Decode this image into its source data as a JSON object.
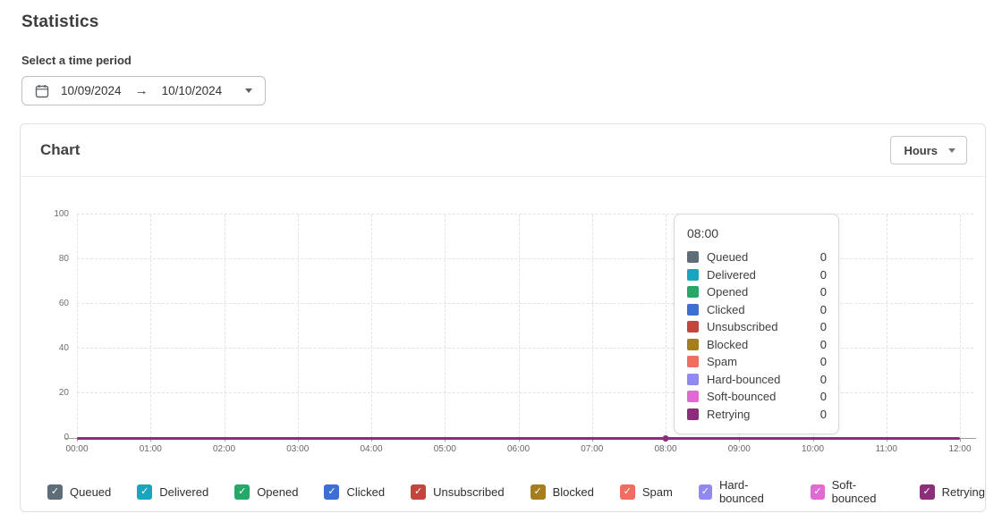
{
  "page": {
    "title": "Statistics"
  },
  "time_period": {
    "label": "Select a time period",
    "start_date": "10/09/2024",
    "end_date": "10/10/2024",
    "arrow": "→"
  },
  "chart_card": {
    "title": "Chart",
    "interval_selector": {
      "value": "Hours"
    }
  },
  "icons": {
    "check": "✓"
  },
  "tooltip": {
    "title": "08:00"
  },
  "chart_data": {
    "type": "line",
    "title": "Chart",
    "xlabel": "",
    "ylabel": "",
    "x": [
      "00:00",
      "01:00",
      "02:00",
      "03:00",
      "04:00",
      "05:00",
      "06:00",
      "07:00",
      "08:00",
      "09:00",
      "10:00",
      "11:00",
      "12:00"
    ],
    "ylim": [
      0,
      100
    ],
    "yticks": [
      0,
      20,
      40,
      60,
      80,
      100
    ],
    "grid": true,
    "legend_position": "bottom",
    "hover": {
      "x": "08:00",
      "index": 8
    },
    "axis_color": "#9e9e9e",
    "grid_color": "#e2e2e2",
    "series": [
      {
        "name": "Queued",
        "color": "#5d6d7a",
        "checked": true,
        "values": [
          0,
          0,
          0,
          0,
          0,
          0,
          0,
          0,
          0,
          0,
          0,
          0,
          0
        ]
      },
      {
        "name": "Delivered",
        "color": "#19a5bd",
        "checked": true,
        "values": [
          0,
          0,
          0,
          0,
          0,
          0,
          0,
          0,
          0,
          0,
          0,
          0,
          0
        ]
      },
      {
        "name": "Opened",
        "color": "#28a769",
        "checked": true,
        "values": [
          0,
          0,
          0,
          0,
          0,
          0,
          0,
          0,
          0,
          0,
          0,
          0,
          0
        ]
      },
      {
        "name": "Clicked",
        "color": "#3d6fd3",
        "checked": true,
        "values": [
          0,
          0,
          0,
          0,
          0,
          0,
          0,
          0,
          0,
          0,
          0,
          0,
          0
        ]
      },
      {
        "name": "Unsubscribed",
        "color": "#c3463c",
        "checked": true,
        "values": [
          0,
          0,
          0,
          0,
          0,
          0,
          0,
          0,
          0,
          0,
          0,
          0,
          0
        ]
      },
      {
        "name": "Blocked",
        "color": "#a67d1f",
        "checked": true,
        "values": [
          0,
          0,
          0,
          0,
          0,
          0,
          0,
          0,
          0,
          0,
          0,
          0,
          0
        ]
      },
      {
        "name": "Spam",
        "color": "#ee6e60",
        "checked": true,
        "values": [
          0,
          0,
          0,
          0,
          0,
          0,
          0,
          0,
          0,
          0,
          0,
          0,
          0
        ]
      },
      {
        "name": "Hard-bounced",
        "color": "#9289f0",
        "checked": true,
        "values": [
          0,
          0,
          0,
          0,
          0,
          0,
          0,
          0,
          0,
          0,
          0,
          0,
          0
        ]
      },
      {
        "name": "Soft-bounced",
        "color": "#de6ad2",
        "checked": true,
        "values": [
          0,
          0,
          0,
          0,
          0,
          0,
          0,
          0,
          0,
          0,
          0,
          0,
          0
        ]
      },
      {
        "name": "Retrying",
        "color": "#8b2f7a",
        "checked": true,
        "values": [
          0,
          0,
          0,
          0,
          0,
          0,
          0,
          0,
          0,
          0,
          0,
          0,
          0
        ]
      }
    ]
  }
}
